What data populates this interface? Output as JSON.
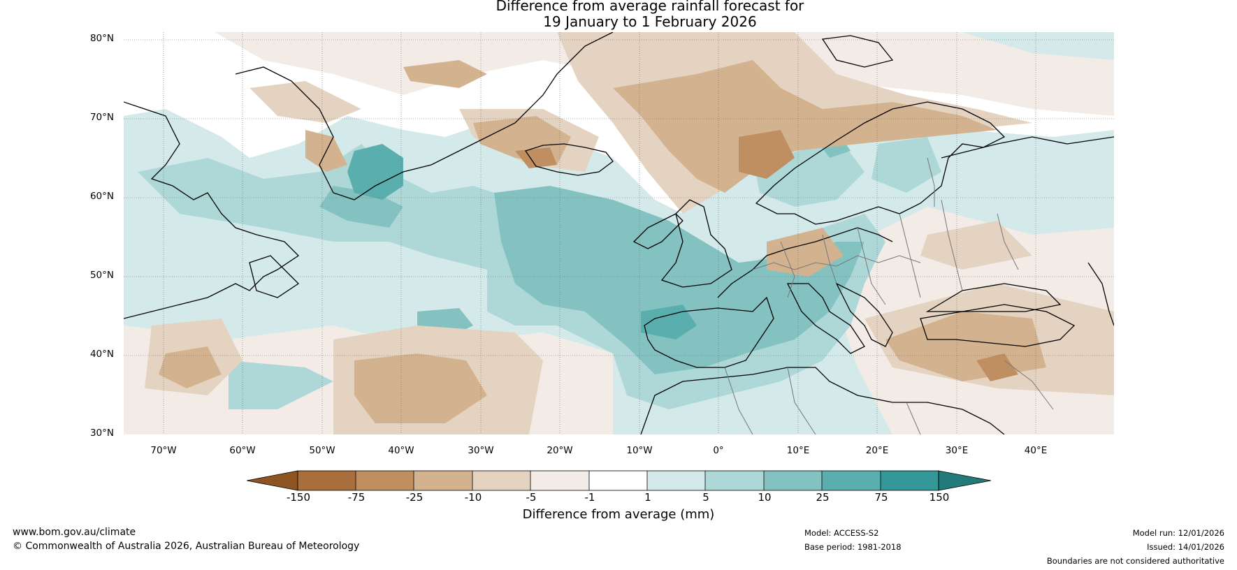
{
  "title_line1": "Difference from average rainfall forecast for",
  "title_line2": "19 January to 1 February 2026",
  "lat_labels": [
    "80°N",
    "70°N",
    "60°N",
    "50°N",
    "40°N",
    "30°N"
  ],
  "lon_labels": [
    "70°W",
    "60°W",
    "50°W",
    "40°W",
    "30°W",
    "20°W",
    "10°W",
    "0°",
    "10°E",
    "20°E",
    "30°E",
    "40°E"
  ],
  "colorbar": {
    "ticks": [
      "-150",
      "-75",
      "-25",
      "-10",
      "-5",
      "-1",
      "1",
      "5",
      "10",
      "25",
      "75",
      "150"
    ],
    "colors": {
      "extend_low": "#8c5523",
      "b1": "#a86f3c",
      "b2": "#bf8f62",
      "b3": "#d3b28f",
      "b4": "#e5d3c1",
      "b5": "#f3ece6",
      "b6": "#ffffff",
      "b7": "#d4e9e9",
      "b8": "#aed8d8",
      "b9": "#84c2c2",
      "b10": "#5aaeae",
      "b11": "#349898",
      "extend_high": "#237a7a"
    },
    "label": "Difference from average (mm)"
  },
  "footer": {
    "website": "www.bom.gov.au/climate",
    "copyright": "© Commonwealth of Australia 2026, Australian Bureau of Meteorology",
    "model": "Model: ACCESS-S2",
    "base_period": "Base period: 1981-2018",
    "model_run": "Model run: 12/01/2026",
    "issued": "Issued: 14/01/2026",
    "disclaimer": "Boundaries are not considered authoritative"
  }
}
